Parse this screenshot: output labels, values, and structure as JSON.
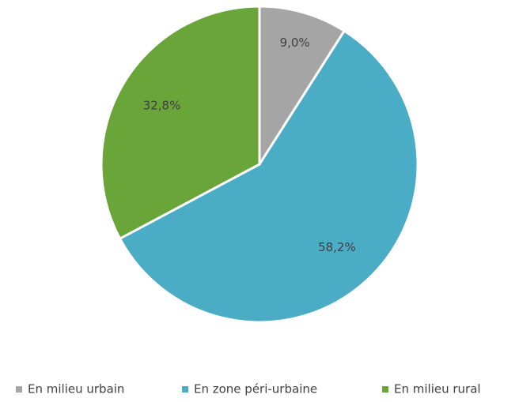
{
  "chart_data": {
    "type": "pie",
    "categories": [
      "En milieu urbain",
      "En zone péri-urbaine",
      "En milieu rural"
    ],
    "values": [
      9.0,
      58.2,
      32.8
    ],
    "value_labels": [
      "9,0%",
      "58,2%",
      "32,8%"
    ],
    "colors": [
      "#a5a5a5",
      "#4bacc6",
      "#6aa53a"
    ],
    "legend": "bottom"
  }
}
